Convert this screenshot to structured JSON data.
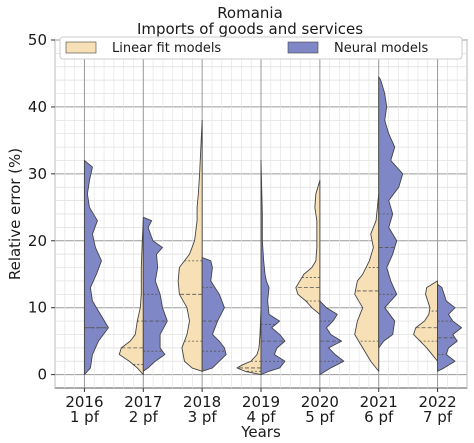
{
  "chart_data": {
    "type": "violin",
    "title": "Romania",
    "subtitle": "Imports of goods and services",
    "xlabel": "Years",
    "ylabel": "Relative error (%)",
    "ylim": [
      -2,
      50
    ],
    "yticks": [
      0,
      10,
      20,
      30,
      40,
      50
    ],
    "grid": true,
    "legend_position": "top",
    "categories": [
      {
        "year": "2016",
        "horizon": "1 pf"
      },
      {
        "year": "2017",
        "horizon": "2 pf"
      },
      {
        "year": "2018",
        "horizon": "3 pf"
      },
      {
        "year": "2019",
        "horizon": "4 pf"
      },
      {
        "year": "2020",
        "horizon": "5 pf"
      },
      {
        "year": "2021",
        "horizon": "6 pf"
      },
      {
        "year": "2022",
        "horizon": "7 pf"
      }
    ],
    "series": [
      {
        "name": "Linear fit models",
        "color": "#f7e0b5",
        "side": "left",
        "violins": [
          null,
          {
            "profile": [
              [
                0,
                0
              ],
              [
                1,
                6
              ],
              [
                2,
                14
              ],
              [
                3,
                24
              ],
              [
                4,
                22
              ],
              [
                5,
                13
              ],
              [
                6,
                8
              ],
              [
                8,
                6
              ],
              [
                10,
                3
              ],
              [
                12,
                2
              ],
              [
                16,
                2
              ],
              [
                20,
                1
              ],
              [
                23,
                0
              ]
            ],
            "quartiles": [
              1.5,
              4,
              8
            ]
          },
          {
            "profile": [
              [
                0.5,
                0
              ],
              [
                1,
                8
              ],
              [
                2,
                14
              ],
              [
                4,
                16
              ],
              [
                6,
                12
              ],
              [
                8,
                10
              ],
              [
                10,
                12
              ],
              [
                12,
                18
              ],
              [
                14,
                19
              ],
              [
                16,
                18
              ],
              [
                18,
                10
              ],
              [
                20,
                6
              ],
              [
                23,
                4
              ],
              [
                25,
                4
              ],
              [
                27,
                3
              ],
              [
                30,
                2
              ],
              [
                34,
                1
              ],
              [
                38,
                0
              ]
            ],
            "quartiles": [
              5,
              12,
              17
            ]
          },
          {
            "profile": [
              [
                0,
                0
              ],
              [
                0.5,
                8
              ],
              [
                1,
                12
              ],
              [
                1.5,
                9
              ],
              [
                2,
                5
              ],
              [
                3,
                2
              ],
              [
                4,
                1
              ],
              [
                6,
                0.5
              ],
              [
                10,
                0
              ]
            ],
            "quartiles": [
              0.5,
              1,
              2
            ]
          },
          {
            "profile": [
              [
                9,
                0
              ],
              [
                10,
                8
              ],
              [
                11,
                14
              ],
              [
                12,
                22
              ],
              [
                13,
                24
              ],
              [
                14,
                20
              ],
              [
                15,
                16
              ],
              [
                16,
                8
              ],
              [
                17,
                4
              ],
              [
                19,
                3
              ],
              [
                21,
                3
              ],
              [
                23,
                3
              ],
              [
                25,
                5
              ],
              [
                27,
                4
              ],
              [
                29,
                0
              ]
            ],
            "quartiles": [
              11,
              13,
              14.5
            ]
          },
          {
            "profile": [
              [
                0.5,
                0
              ],
              [
                2,
                6
              ],
              [
                4,
                12
              ],
              [
                6,
                18
              ],
              [
                8,
                16
              ],
              [
                10,
                12
              ],
              [
                12,
                18
              ],
              [
                14,
                16
              ],
              [
                15,
                12
              ],
              [
                17,
                7
              ],
              [
                19,
                4
              ],
              [
                21,
                6
              ],
              [
                23,
                2
              ],
              [
                25,
                1
              ],
              [
                27,
                0
              ]
            ],
            "quartiles": [
              5,
              12.5,
              16
            ]
          },
          {
            "profile": [
              [
                2,
                0
              ],
              [
                3,
                5
              ],
              [
                4,
                10
              ],
              [
                5,
                16
              ],
              [
                6,
                22
              ],
              [
                7,
                20
              ],
              [
                8,
                12
              ],
              [
                9,
                8
              ],
              [
                10,
                7
              ],
              [
                11,
                9
              ],
              [
                12,
                11
              ],
              [
                13,
                10
              ],
              [
                14,
                0
              ]
            ],
            "quartiles": [
              5,
              7,
              9.5
            ]
          }
        ]
      },
      {
        "name": "Neural models",
        "color": "#7f87c6",
        "side": "right",
        "violins": [
          {
            "profile": [
              [
                0,
                0
              ],
              [
                1,
                6
              ],
              [
                3,
                8
              ],
              [
                5,
                14
              ],
              [
                7,
                24
              ],
              [
                9,
                16
              ],
              [
                11,
                8
              ],
              [
                13,
                6
              ],
              [
                15,
                12
              ],
              [
                17,
                17
              ],
              [
                19,
                11
              ],
              [
                21,
                8
              ],
              [
                23,
                13
              ],
              [
                25,
                5
              ],
              [
                27,
                3
              ],
              [
                29,
                5
              ],
              [
                31,
                8
              ],
              [
                32,
                0
              ]
            ],
            "quartiles": [
              7,
              7,
              7
            ]
          },
          {
            "profile": [
              [
                0.5,
                0
              ],
              [
                1,
                4
              ],
              [
                2,
                10
              ],
              [
                3,
                18
              ],
              [
                4,
                14
              ],
              [
                6,
                14
              ],
              [
                8,
                20
              ],
              [
                10,
                16
              ],
              [
                12,
                14
              ],
              [
                14,
                10
              ],
              [
                16,
                12
              ],
              [
                18,
                11
              ],
              [
                19,
                16
              ],
              [
                20,
                8
              ],
              [
                22,
                4
              ],
              [
                23,
                7
              ],
              [
                23.5,
                0
              ]
            ],
            "quartiles": [
              3.5,
              8,
              12
            ]
          },
          {
            "profile": [
              [
                0.5,
                0
              ],
              [
                1,
                12
              ],
              [
                2,
                20
              ],
              [
                3,
                28
              ],
              [
                4,
                26
              ],
              [
                5,
                20
              ],
              [
                6,
                12
              ],
              [
                8,
                18
              ],
              [
                10,
                26
              ],
              [
                12,
                20
              ],
              [
                14,
                10
              ],
              [
                16,
                12
              ],
              [
                17,
                10
              ],
              [
                17.5,
                0
              ]
            ],
            "quartiles": [
              3.5,
              8,
              13
            ]
          },
          {
            "profile": [
              [
                0,
                0
              ],
              [
                0.5,
                6
              ],
              [
                1,
                14
              ],
              [
                2,
                18
              ],
              [
                3,
                10
              ],
              [
                4,
                12
              ],
              [
                5,
                18
              ],
              [
                6,
                14
              ],
              [
                7,
                8
              ],
              [
                8,
                14
              ],
              [
                9,
                6
              ],
              [
                11,
                5
              ],
              [
                13,
                6
              ],
              [
                14,
                4
              ],
              [
                15,
                3
              ],
              [
                17,
                2
              ],
              [
                20,
                1
              ],
              [
                24,
                1
              ],
              [
                28,
                0.5
              ],
              [
                32,
                0
              ]
            ],
            "quartiles": [
              2,
              5,
              7.5
            ]
          },
          {
            "profile": [
              [
                0,
                0
              ],
              [
                1,
                10
              ],
              [
                2,
                22
              ],
              [
                3,
                14
              ],
              [
                4,
                8
              ],
              [
                5,
                20
              ],
              [
                6,
                10
              ],
              [
                7,
                6
              ],
              [
                8,
                12
              ],
              [
                9,
                16
              ],
              [
                10,
                6
              ],
              [
                11,
                0
              ]
            ],
            "quartiles": [
              2,
              5,
              8
            ]
          },
          {
            "profile": [
              [
                4,
                0
              ],
              [
                5,
                5
              ],
              [
                6,
                14
              ],
              [
                8,
                16
              ],
              [
                10,
                6
              ],
              [
                12,
                18
              ],
              [
                14,
                12
              ],
              [
                16,
                8
              ],
              [
                18,
                14
              ],
              [
                20,
                18
              ],
              [
                22,
                10
              ],
              [
                24,
                14
              ],
              [
                26,
                10
              ],
              [
                28,
                20
              ],
              [
                30,
                24
              ],
              [
                32,
                12
              ],
              [
                34,
                16
              ],
              [
                36,
                10
              ],
              [
                38,
                6
              ],
              [
                40,
                8
              ],
              [
                42,
                6
              ],
              [
                44,
                2
              ],
              [
                44.5,
                0
              ]
            ],
            "quartiles": [
              12,
              19,
              24
            ]
          },
          {
            "profile": [
              [
                0.5,
                0
              ],
              [
                1,
                6
              ],
              [
                2,
                16
              ],
              [
                3,
                8
              ],
              [
                4,
                10
              ],
              [
                5,
                18
              ],
              [
                6,
                14
              ],
              [
                7,
                22
              ],
              [
                8,
                14
              ],
              [
                9,
                10
              ],
              [
                10,
                16
              ],
              [
                11,
                8
              ],
              [
                12,
                6
              ],
              [
                13,
                4
              ],
              [
                13.5,
                0
              ]
            ],
            "quartiles": [
              3,
              5.5,
              8
            ]
          }
        ]
      }
    ]
  }
}
